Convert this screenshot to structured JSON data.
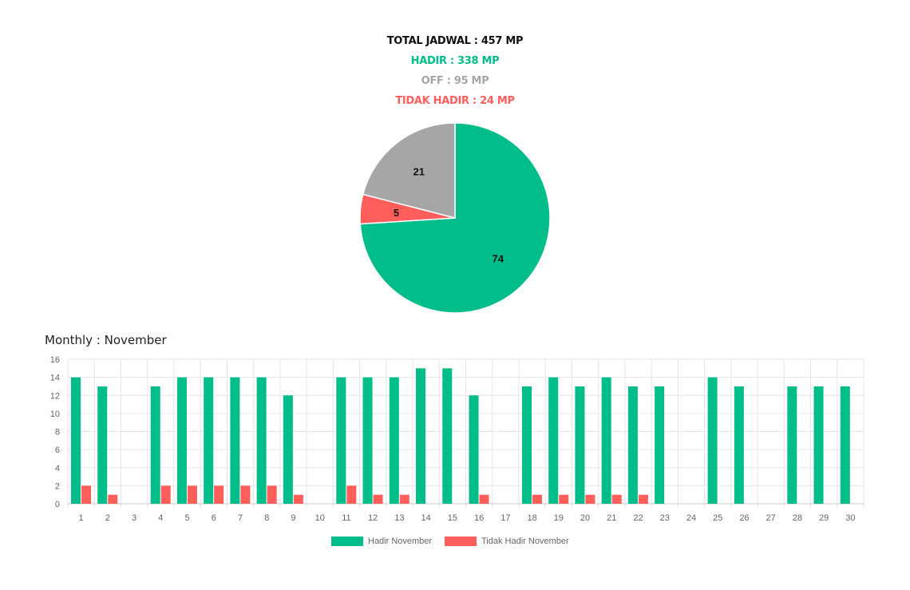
{
  "summary": {
    "total": "TOTAL JADWAL : 457 MP",
    "hadir": "HADIR : 338 MP",
    "off": "OFF : 95 MP",
    "tidak_hadir": "TIDAK HADIR : 24 MP"
  },
  "colors": {
    "hadir": "#00BD8A",
    "off": "#A6A6A6",
    "tidak_hadir": "#FF5E5B",
    "total": "#111111"
  },
  "chart_data": [
    {
      "type": "pie",
      "slices": [
        {
          "label": "74",
          "value": 74,
          "color": "#00BD8A"
        },
        {
          "label": "5",
          "value": 5,
          "color": "#FF5E5B"
        },
        {
          "label": "21",
          "value": 21,
          "color": "#A6A6A6"
        }
      ],
      "start": "top",
      "direction": "clockwise"
    },
    {
      "type": "bar",
      "title": "Monthly : November",
      "categories": [
        "1",
        "2",
        "3",
        "4",
        "5",
        "6",
        "7",
        "8",
        "9",
        "10",
        "11",
        "12",
        "13",
        "14",
        "15",
        "16",
        "17",
        "18",
        "19",
        "20",
        "21",
        "22",
        "23",
        "24",
        "25",
        "26",
        "27",
        "28",
        "29",
        "30"
      ],
      "series": [
        {
          "name": "Hadir November",
          "color": "#00BD8A",
          "values": [
            14,
            13,
            0,
            13,
            14,
            14,
            14,
            14,
            12,
            0,
            14,
            14,
            14,
            15,
            15,
            12,
            0,
            13,
            14,
            13,
            14,
            13,
            13,
            0,
            14,
            13,
            0,
            13,
            13,
            13
          ]
        },
        {
          "name": "Tidak Hadir November",
          "color": "#FF5E5B",
          "values": [
            2,
            1,
            0,
            2,
            2,
            2,
            2,
            2,
            1,
            0,
            2,
            1,
            1,
            0,
            0,
            1,
            0,
            1,
            1,
            1,
            1,
            1,
            0,
            0,
            0,
            0,
            0,
            0,
            0,
            0
          ]
        }
      ],
      "ylim": [
        0,
        16
      ],
      "yticks": [
        0,
        2,
        4,
        6,
        8,
        10,
        12,
        14,
        16
      ],
      "grid": true,
      "legend": "bottom"
    }
  ]
}
